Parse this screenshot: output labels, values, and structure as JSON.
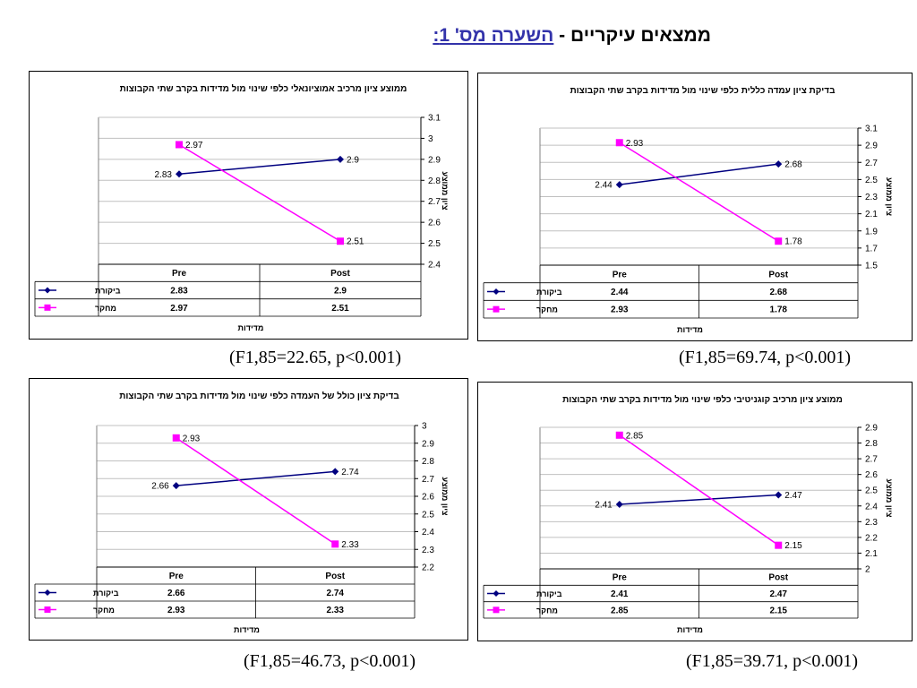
{
  "page": {
    "title_prefix": "ממצאים עיקריים - ",
    "title_underlined": "השערה מס' 1:"
  },
  "colors": {
    "control": "#000080",
    "experiment": "#ff00ff",
    "grid": "#c0c0c0"
  },
  "chart_data": [
    {
      "type": "line",
      "title": "ממוצע ציון מרכיב אמוציונאלי כלפי שינוי מול מדידות בקרב שתי הקבוצות",
      "xlabel": "מדידות",
      "ylabel": "ציון ממוצע",
      "categories": [
        "Pre",
        "Post"
      ],
      "ylim": [
        2.4,
        3.1
      ],
      "yticks": [
        "2.4",
        "2.5",
        "2.6",
        "2.7",
        "2.8",
        "2.9",
        "3",
        "3.1"
      ],
      "series": [
        {
          "name": "ביקורת",
          "values": [
            2.83,
            2.9
          ],
          "labels": [
            "2.83",
            "2.9"
          ]
        },
        {
          "name": "מחקר",
          "values": [
            2.97,
            2.51
          ],
          "labels": [
            "2.97",
            "2.51"
          ]
        }
      ],
      "stat": "(F1,85=22.65, p<0.001)"
    },
    {
      "type": "line",
      "title": "בדיקת ציון עמדה כללית כלפי שינוי מול מדידות בקרב שתי הקבוצות",
      "xlabel": "מדידות",
      "ylabel": "ציון ממוצע",
      "categories": [
        "Pre",
        "Post"
      ],
      "ylim": [
        1.5,
        3.1
      ],
      "yticks": [
        "1.5",
        "1.7",
        "1.9",
        "2.1",
        "2.3",
        "2.5",
        "2.7",
        "2.9",
        "3.1"
      ],
      "series": [
        {
          "name": "ביקורת",
          "values": [
            2.44,
            2.68
          ],
          "labels": [
            "2.44",
            "2.68"
          ]
        },
        {
          "name": "מחקר",
          "values": [
            2.93,
            1.78
          ],
          "labels": [
            "2.93",
            "1.78"
          ]
        }
      ],
      "stat": "(F1,85=69.74, p<0.001)"
    },
    {
      "type": "line",
      "title": "בדיקת ציון כולל של העמדה כלפי שינוי מול מדידות בקרב שתי הקבוצות",
      "xlabel": "מדידות",
      "ylabel": "ציון ממוצע",
      "categories": [
        "Pre",
        "Post"
      ],
      "ylim": [
        2.2,
        3
      ],
      "yticks": [
        "2.2",
        "2.3",
        "2.4",
        "2.5",
        "2.6",
        "2.7",
        "2.8",
        "2.9",
        "3"
      ],
      "series": [
        {
          "name": "ביקורת",
          "values": [
            2.66,
            2.74
          ],
          "labels": [
            "2.66",
            "2.74"
          ]
        },
        {
          "name": "מחקר",
          "values": [
            2.93,
            2.33
          ],
          "labels": [
            "2.93",
            "2.33"
          ]
        }
      ],
      "stat": "(F1,85=46.73, p<0.001)"
    },
    {
      "type": "line",
      "title": "ממוצע ציון מרכיב קוגניטיבי כלפי שינוי מול מדידות בקרב שתי הקבוצות",
      "xlabel": "מדידות",
      "ylabel": "ציון ממוצע",
      "categories": [
        "Pre",
        "Post"
      ],
      "ylim": [
        2,
        2.9
      ],
      "yticks": [
        "2",
        "2.1",
        "2.2",
        "2.3",
        "2.4",
        "2.5",
        "2.6",
        "2.7",
        "2.8",
        "2.9"
      ],
      "series": [
        {
          "name": "ביקורת",
          "values": [
            2.41,
            2.47
          ],
          "labels": [
            "2.41",
            "2.47"
          ]
        },
        {
          "name": "מחקר",
          "values": [
            2.85,
            2.15
          ],
          "labels": [
            "2.85",
            "2.15"
          ]
        }
      ],
      "stat": "(F1,85=39.71, p<0.001)"
    }
  ]
}
